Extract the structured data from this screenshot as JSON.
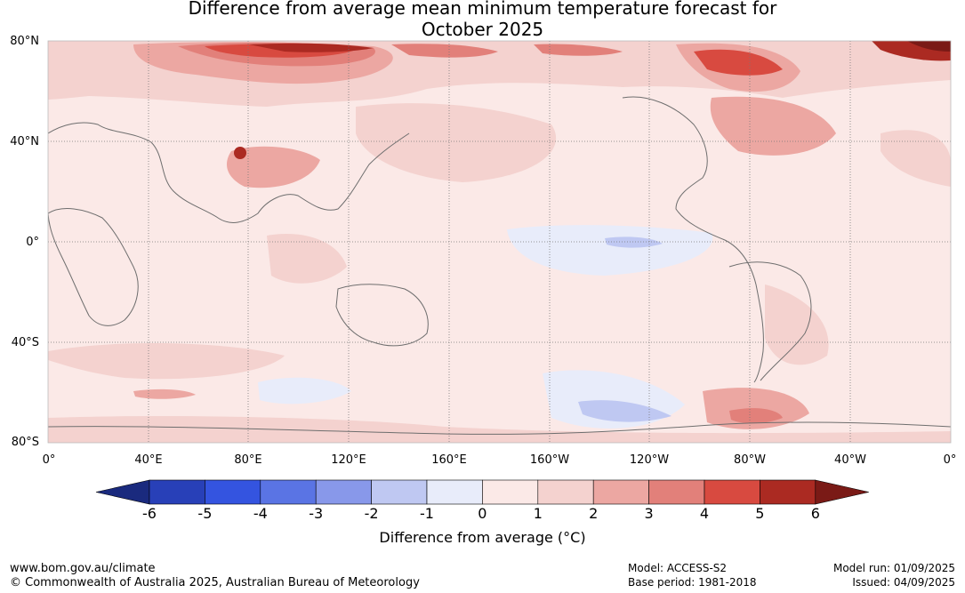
{
  "title_line1": "Difference from average mean minimum temperature forecast for",
  "title_line2": "October 2025",
  "lat_labels": [
    "80°N",
    "40°N",
    "0°",
    "40°S",
    "80°S"
  ],
  "lon_labels": [
    "0°",
    "40°E",
    "80°E",
    "120°E",
    "160°E",
    "160°W",
    "120°W",
    "80°W",
    "40°W",
    "0°"
  ],
  "colorbar": {
    "ticks": [
      "-6",
      "-5",
      "-4",
      "-3",
      "-2",
      "-1",
      "0",
      "1",
      "2",
      "3",
      "4",
      "5",
      "6"
    ],
    "colors": [
      "#1a2a7e",
      "#2840b8",
      "#3454e0",
      "#5a74e4",
      "#8898ea",
      "#bfc8f2",
      "#e8ecfa",
      "#fbe9e7",
      "#f4d2cf",
      "#eca7a2",
      "#e2807a",
      "#d84a40",
      "#ab2a22",
      "#7a1a16"
    ],
    "label": "Difference from average (°C)"
  },
  "footer": {
    "website": "www.bom.gov.au/climate",
    "copyright": "© Commonwealth of Australia 2025, Australian Bureau of Meteorology",
    "model": "Model: ACCESS-S2",
    "base_period": "Base period: 1981-2018",
    "model_run": "Model run: 01/09/2025",
    "issued": "Issued: 04/09/2025"
  },
  "map_colors": {
    "ocean_base": "#fbe9e7",
    "coast": "#6e6e6e",
    "grid": "#777777"
  }
}
